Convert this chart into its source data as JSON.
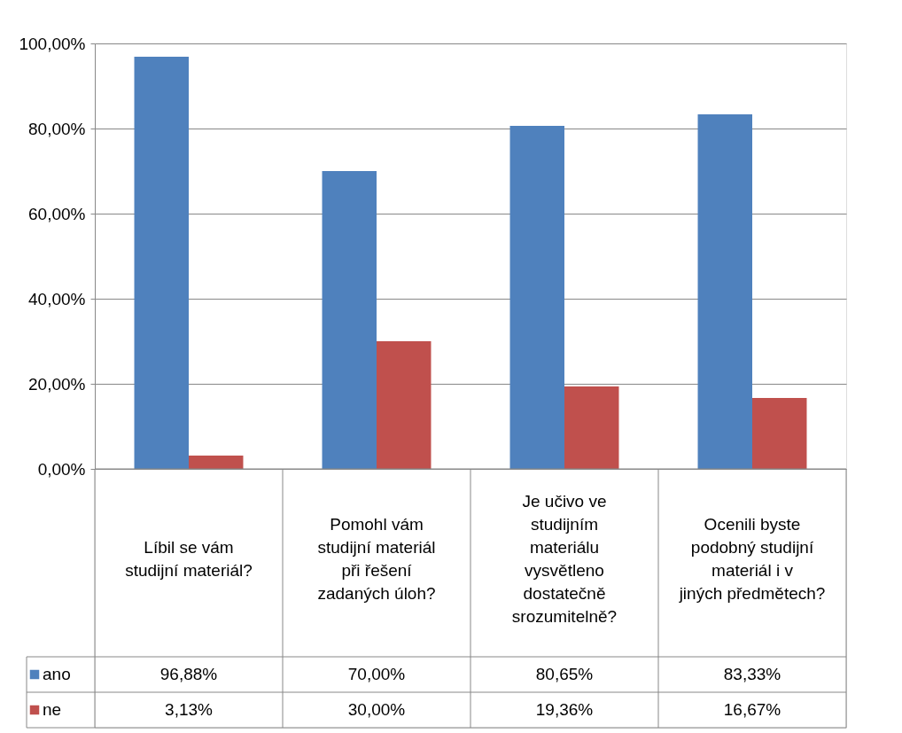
{
  "chart_data": {
    "type": "bar",
    "categories": [
      "Líbil se vám studijní materiál?",
      "Pomohl vám studijní materiál při řešení zadaných úloh?",
      "Je učivo ve studijním materiálu vysvětleno dostatečně srozumitelně?",
      "Ocenili byste podobný studijní materiál i v jiných předmětech?"
    ],
    "series": [
      {
        "name": "ano",
        "color": "#4f81bd",
        "values": [
          96.88,
          70.0,
          80.65,
          83.33
        ],
        "value_labels": [
          "96,88%",
          "70,00%",
          "80,65%",
          "83,33%"
        ]
      },
      {
        "name": "ne",
        "color": "#c0504d",
        "values": [
          3.13,
          30.0,
          19.36,
          16.67
        ],
        "value_labels": [
          "3,13%",
          "30,00%",
          "19,36%",
          "16,67%"
        ]
      }
    ],
    "ylim": [
      0,
      100
    ],
    "yticks": [
      {
        "value": 0,
        "label": "0,00%"
      },
      {
        "value": 20,
        "label": "20,00%"
      },
      {
        "value": 40,
        "label": "40,00%"
      },
      {
        "value": 60,
        "label": "60,00%"
      },
      {
        "value": 80,
        "label": "80,00%"
      },
      {
        "value": 100,
        "label": "100,00%"
      }
    ],
    "grid": "y",
    "legend": "bottom"
  }
}
